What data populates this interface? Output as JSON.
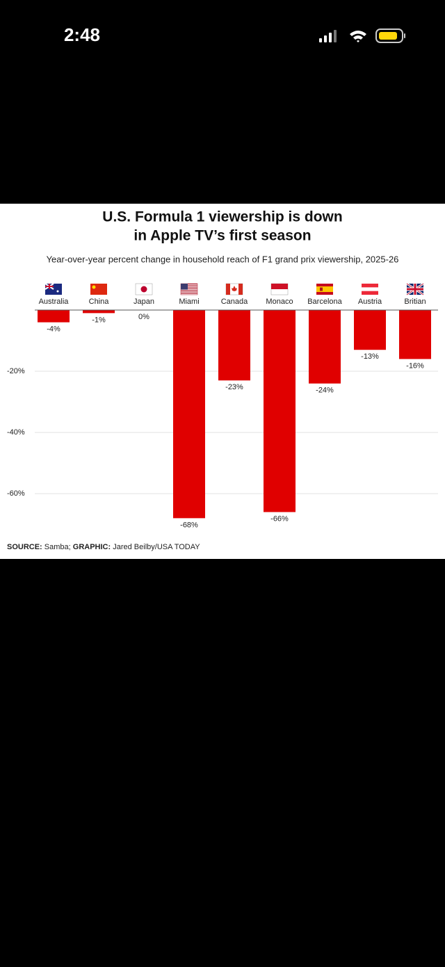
{
  "status_bar": {
    "time": "2:48"
  },
  "chart_data": {
    "type": "bar",
    "title": [
      "U.S. Formula 1 viewership is down",
      "in Apple TV’s first season"
    ],
    "subtitle": "Year-over-year percent change in household reach of F1 grand prix viewership, 2025-26",
    "categories": [
      "Australia",
      "China",
      "Japan",
      "Miami",
      "Canada",
      "Monaco",
      "Barcelona",
      "Austria",
      "Britian"
    ],
    "values": [
      -4,
      -1,
      0,
      -68,
      -23,
      -66,
      -24,
      -13,
      -16
    ],
    "value_labels": [
      "-4%",
      "-1%",
      "0%",
      "-68%",
      "-23%",
      "-66%",
      "-24%",
      "-13%",
      "-16%"
    ],
    "color": "#e00000",
    "ylim": [
      -72,
      0
    ],
    "yticks": [
      {
        "value": -20,
        "label": "-20%"
      },
      {
        "value": -40,
        "label": "-40%"
      },
      {
        "value": -60,
        "label": "-60%"
      }
    ],
    "grid": true,
    "source_label": "SOURCE:",
    "source": "Samba;",
    "graphic_label": "GRAPHIC:",
    "graphic": "Jared Beilby/USA TODAY"
  }
}
